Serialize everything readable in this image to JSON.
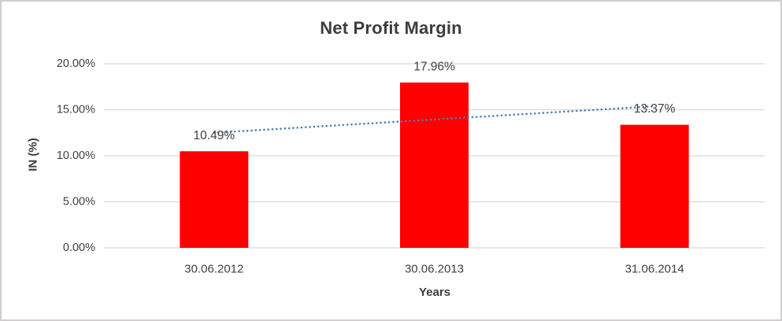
{
  "chart_data": {
    "type": "bar",
    "title": "Net Profit Margin",
    "categories": [
      "30.06.2012",
      "30.06.2013",
      "31.06.2014"
    ],
    "values": [
      10.49,
      17.96,
      13.37
    ],
    "data_labels": [
      "10.49%",
      "17.96%",
      "13.37%"
    ],
    "xlabel": "Years",
    "ylabel": "IN (%)",
    "ylim": [
      0,
      20
    ],
    "ytick_step": 5,
    "ytick_labels": [
      "0.00%",
      "5.00%",
      "10.00%",
      "15.00%",
      "20.00%"
    ],
    "grid": true,
    "legend": "none",
    "bar_color": "#ff0000",
    "trendline": {
      "type": "linear",
      "style": "dotted",
      "color": "#4a7ebb",
      "start_value": 12.5,
      "end_value": 15.38
    },
    "colors": {
      "text": "#3f3f3f",
      "gridline": "#d9d9d9",
      "border": "#d0cece",
      "background": "#ffffff"
    }
  }
}
